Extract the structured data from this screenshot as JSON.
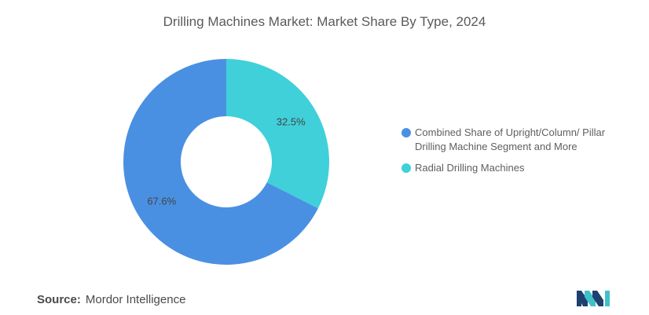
{
  "title": "Drilling Machines Market: Market Share By Type, 2024",
  "chart_data": {
    "type": "pie",
    "variant": "donut",
    "categories": [
      "Combined Share of Upright/Column/ Pillar Drilling Machine Segment and More",
      "Radial Drilling Machines"
    ],
    "values": [
      67.6,
      32.5
    ],
    "data_labels": [
      "67.6%",
      "32.5%"
    ],
    "colors": [
      "#4a90e2",
      "#3fd0da"
    ],
    "legend_position": "right"
  },
  "legend": {
    "items": [
      {
        "label": "Combined Share of Upright/Column/ Pillar Drilling Machine Segment and More",
        "color": "#4a90e2"
      },
      {
        "label": "Radial Drilling Machines",
        "color": "#3fd0da"
      }
    ]
  },
  "source": {
    "label": "Source:",
    "value": "Mordor Intelligence"
  },
  "logo": {
    "icon": "mordor-intelligence-logo-icon",
    "colors": [
      "#1f3f6e",
      "#3fc1c9"
    ]
  }
}
